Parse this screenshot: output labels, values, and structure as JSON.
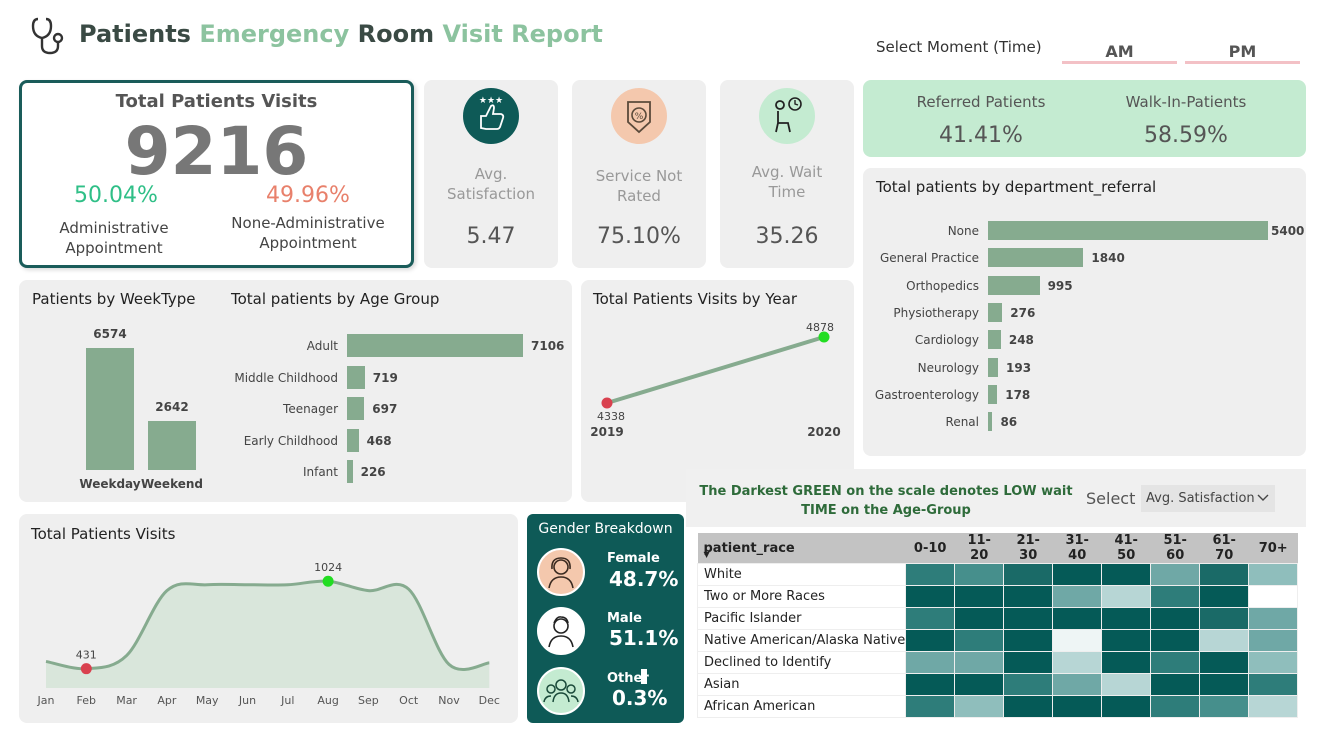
{
  "header": {
    "title_part1": "Patients",
    "title_part2": "Emergency",
    "title_part3": "Room",
    "title_part4": "Visit Report"
  },
  "moment": {
    "label": "Select Moment (Time)",
    "am": "AM",
    "pm": "PM"
  },
  "total": {
    "title": "Total Patients Visits",
    "value": "9216",
    "admin_pct": "50.04%",
    "admin_label1": "Administrative",
    "admin_label2": "Appointment",
    "nonadmin_pct": "49.96%",
    "nonadmin_label1": "None-Administrative",
    "nonadmin_label2": "Appointment"
  },
  "kpis": [
    {
      "label1": "Avg.",
      "label2": "Satisfaction",
      "value": "5.47",
      "icon": "thumbs-up-stars-icon"
    },
    {
      "label1": "Service Not",
      "label2": "Rated",
      "value": "75.10%",
      "icon": "rating-badge-icon"
    },
    {
      "label1": "Avg. Wait",
      "label2": "Time",
      "value": "35.26",
      "icon": "waiting-person-clock-icon"
    }
  ],
  "referral": {
    "referred_label": "Referred Patients",
    "referred_value": "41.41%",
    "walkin_label": "Walk-In-Patients",
    "walkin_value": "58.59%"
  },
  "dept_chart": {
    "title": "Total patients by department_referral",
    "chart_data": {
      "type": "bar",
      "orientation": "horizontal",
      "categories": [
        "None",
        "General Practice",
        "Orthopedics",
        "Physiotherapy",
        "Cardiology",
        "Neurology",
        "Gastroenterology",
        "Renal"
      ],
      "values": [
        5400,
        1840,
        995,
        276,
        248,
        193,
        178,
        86
      ],
      "labels": [
        "5400",
        "1840",
        "995",
        "276",
        "248",
        "193",
        "178",
        "86"
      ]
    }
  },
  "week_chart": {
    "title": "Patients by WeekType",
    "chart_data": {
      "type": "bar",
      "categories": [
        "Weekday",
        "Weekend"
      ],
      "values": [
        6574,
        2642
      ],
      "labels": [
        "6574",
        "2642"
      ]
    }
  },
  "age_chart": {
    "title": "Total patients by Age Group",
    "chart_data": {
      "type": "bar",
      "orientation": "horizontal",
      "categories": [
        "Adult",
        "Middle Childhood",
        "Teenager",
        "Early Childhood",
        "Infant"
      ],
      "values": [
        7106,
        719,
        697,
        468,
        226
      ],
      "labels": [
        "7106",
        "719",
        "697",
        "468",
        "226"
      ]
    }
  },
  "year_chart": {
    "title": "Total Patients Visits by Year",
    "chart_data": {
      "type": "line",
      "x": [
        "2019",
        "2020"
      ],
      "values": [
        4338,
        4878
      ],
      "labels": [
        "4338",
        "4878"
      ],
      "point_colors": [
        "#d9414f",
        "#22dd22"
      ]
    }
  },
  "month_chart": {
    "title": "Total Patients Visits",
    "chart_data": {
      "type": "area",
      "x": [
        "Jan",
        "Feb",
        "Mar",
        "Apr",
        "May",
        "Jun",
        "Jul",
        "Aug",
        "Sep",
        "Oct",
        "Nov",
        "Dec"
      ],
      "values": [
        480,
        431,
        520,
        960,
        1000,
        1000,
        1000,
        1024,
        960,
        970,
        460,
        470
      ],
      "min_label": "431",
      "max_label": "1024"
    }
  },
  "gender": {
    "title": "Gender Breakdown",
    "female_label": "Female",
    "female_value": "48.7%",
    "male_label": "Male",
    "male_value": "51.1%",
    "other_label": "Other",
    "other_value": "0.3%"
  },
  "heatmap": {
    "note1": "The Darkest GREEN on the scale denotes LOW wait",
    "note2": "TIME on the Age-Group",
    "select_label": "Select",
    "select_value": "Avg. Satisfaction",
    "row_header": "patient_race",
    "columns": [
      "0-10",
      "11-20",
      "21-30",
      "31-40",
      "41-50",
      "51-60",
      "61-70",
      "70+"
    ],
    "rows": [
      "White",
      "Two or More Races",
      "Pacific Islander",
      "Native American/Alaska Native",
      "Declined to Identify",
      "Asian",
      "African American"
    ],
    "cells": [
      [
        "#2e7d7a",
        "#468f8c",
        "#1a6a67",
        "#055a57",
        "#055a57",
        "#6fa8a6",
        "#1a6a67",
        "#8fbebc"
      ],
      [
        "#055a57",
        "#055a57",
        "#055a57",
        "#6fa8a6",
        "#b7d6d5",
        "#2e7d7a",
        "#055a57",
        "#ffffff"
      ],
      [
        "#2e7d7a",
        "#055a57",
        "#055a57",
        "#055a57",
        "#055a57",
        "#055a57",
        "#1a6a67",
        "#6fa8a6"
      ],
      [
        "#055a57",
        "#2e7d7a",
        "#055a57",
        "#eef5f5",
        "#055a57",
        "#055a57",
        "#b7d6d5",
        "#6fa8a6"
      ],
      [
        "#6fa8a6",
        "#6fa8a6",
        "#055a57",
        "#b7d6d5",
        "#055a57",
        "#2e7d7a",
        "#055a57",
        "#8fbebc"
      ],
      [
        "#055a57",
        "#055a57",
        "#2e7d7a",
        "#6fa8a6",
        "#b7d6d5",
        "#055a57",
        "#055a57",
        "#2e7d7a"
      ],
      [
        "#2e7d7a",
        "#8fbebc",
        "#055a57",
        "#055a57",
        "#055a57",
        "#2e7d7a",
        "#468f8c",
        "#b7d6d5"
      ]
    ]
  }
}
